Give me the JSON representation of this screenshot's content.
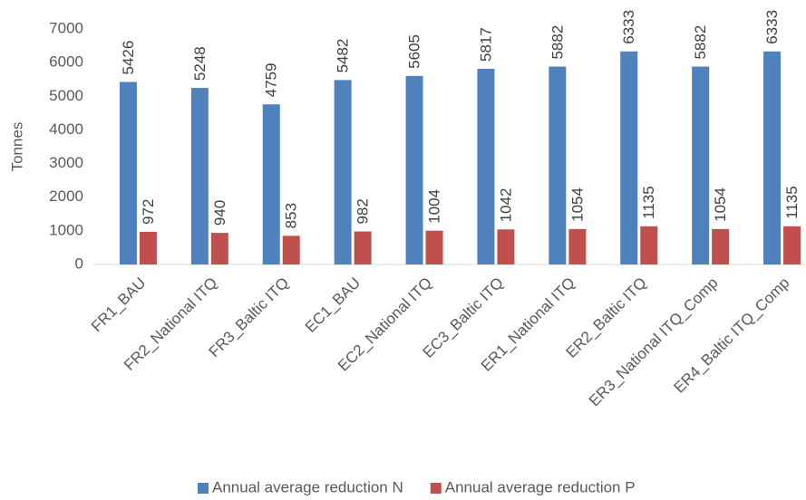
{
  "chart_data": {
    "type": "bar",
    "y_label": "Tonnes",
    "categories": [
      "FR1_BAU",
      "FR2_National ITQ",
      "FR3_Baltic ITQ",
      "EC1_BAU",
      "EC2_National ITQ",
      "EC3_Baltic ITQ",
      "ER1_National ITQ",
      "ER2_Baltic ITQ",
      "ER3_National ITQ_Comp",
      "ER4_Baltic ITQ_Comp"
    ],
    "series": [
      {
        "name": "Annual average reduction N",
        "color": "#4f81bd",
        "values": [
          5426,
          5248,
          4759,
          5482,
          5605,
          5817,
          5882,
          6333,
          5882,
          6333
        ]
      },
      {
        "name": "Annual average reduction P",
        "color": "#c0504d",
        "values": [
          972,
          940,
          853,
          982,
          1004,
          1042,
          1054,
          1135,
          1054,
          1135
        ]
      }
    ],
    "ylim": [
      0,
      7000
    ],
    "yticks": [
      0,
      1000,
      2000,
      3000,
      4000,
      5000,
      6000,
      7000
    ],
    "grid": false,
    "legend": "bottom"
  }
}
